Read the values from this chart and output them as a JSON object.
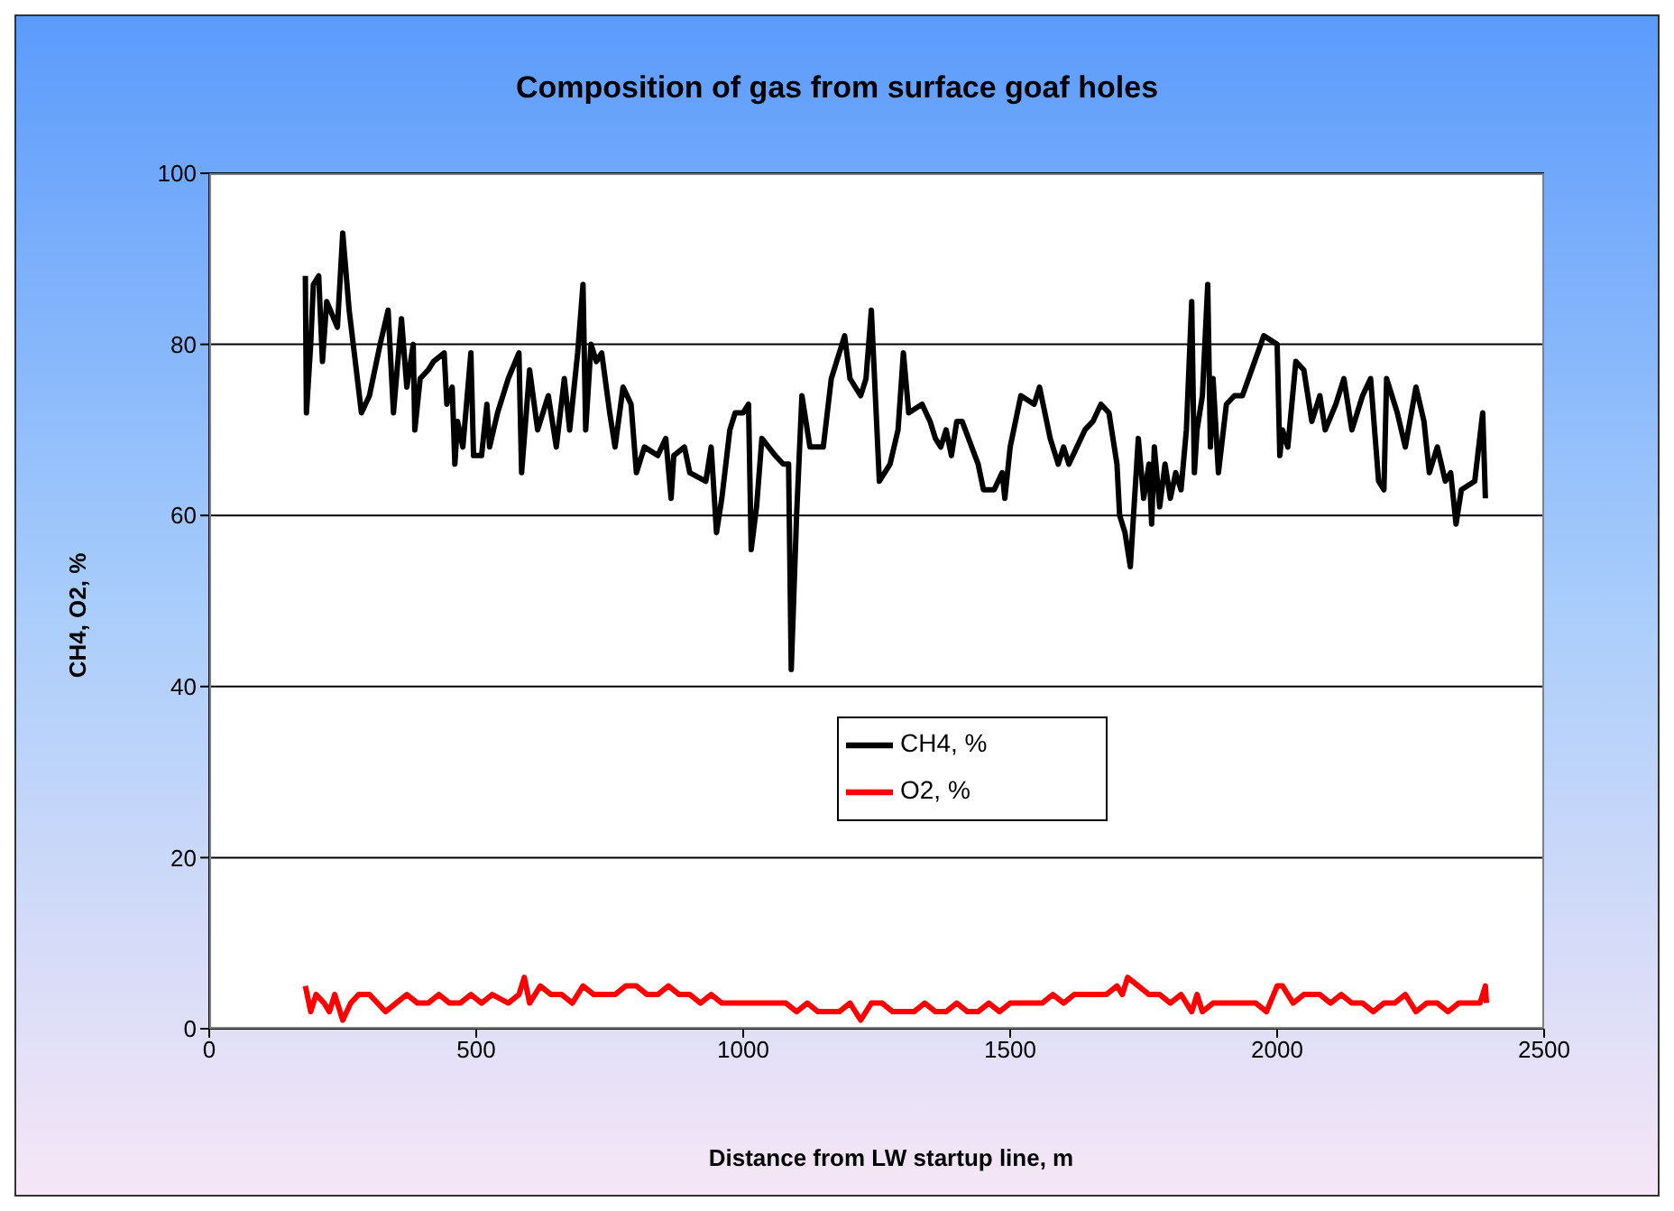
{
  "chart_data": {
    "type": "line",
    "title": "Composition of gas from surface goaf holes",
    "xlabel": "Distance from LW startup line, m",
    "ylabel": "CH4, O2, %",
    "xlim": [
      0,
      2500
    ],
    "xticks": [
      0,
      500,
      1000,
      1500,
      2000,
      2500
    ],
    "ylim": [
      0,
      100
    ],
    "yticks": [
      0,
      20,
      40,
      60,
      80,
      100
    ],
    "grid": "y",
    "legend": "bottom",
    "marker": "none",
    "line_style": "solid",
    "series": [
      {
        "name": "CH4, %",
        "color": "#000000",
        "x": [
          180,
          182,
          190,
          195,
          205,
          212,
          220,
          240,
          250,
          262,
          285,
          300,
          320,
          335,
          345,
          360,
          370,
          382,
          385,
          395,
          410,
          420,
          440,
          445,
          455,
          460,
          465,
          475,
          490,
          495,
          510,
          520,
          525,
          540,
          560,
          580,
          585,
          600,
          615,
          625,
          635,
          650,
          665,
          675,
          690,
          700,
          705,
          715,
          725,
          735,
          750,
          760,
          775,
          790,
          800,
          815,
          840,
          855,
          865,
          870,
          890,
          900,
          930,
          940,
          950,
          960,
          975,
          985,
          1000,
          1010,
          1015,
          1025,
          1035,
          1060,
          1075,
          1085,
          1090,
          1100,
          1110,
          1125,
          1150,
          1165,
          1190,
          1200,
          1220,
          1230,
          1240,
          1255,
          1275,
          1290,
          1300,
          1310,
          1335,
          1350,
          1360,
          1370,
          1380,
          1390,
          1400,
          1410,
          1440,
          1450,
          1470,
          1485,
          1490,
          1500,
          1520,
          1545,
          1555,
          1575,
          1590,
          1600,
          1610,
          1625,
          1640,
          1655,
          1670,
          1685,
          1700,
          1705,
          1715,
          1725,
          1740,
          1750,
          1760,
          1765,
          1770,
          1780,
          1790,
          1800,
          1810,
          1820,
          1830,
          1840,
          1845,
          1850,
          1860,
          1870,
          1875,
          1880,
          1890,
          1905,
          1920,
          1935,
          1975,
          2000,
          2005,
          2010,
          2020,
          2035,
          2050,
          2065,
          2080,
          2090,
          2110,
          2125,
          2140,
          2160,
          2175,
          2190,
          2200,
          2205,
          2225,
          2240,
          2260,
          2275,
          2285,
          2300,
          2315,
          2325,
          2335,
          2345,
          2370,
          2385,
          2390
        ],
        "values": [
          88,
          72,
          80,
          87,
          88,
          78,
          85,
          82,
          93,
          84,
          72,
          74,
          80,
          84,
          72,
          83,
          75,
          80,
          70,
          76,
          77,
          78,
          79,
          73,
          75,
          66,
          71,
          68,
          79,
          67,
          67,
          73,
          68,
          72,
          76,
          79,
          65,
          77,
          70,
          72,
          74,
          68,
          76,
          70,
          79,
          87,
          70,
          80,
          78,
          79,
          72,
          68,
          75,
          73,
          65,
          68,
          67,
          69,
          62,
          67,
          68,
          65,
          64,
          68,
          58,
          62,
          70,
          72,
          72,
          73,
          56,
          61,
          69,
          67,
          66,
          66,
          42,
          60,
          74,
          68,
          68,
          76,
          81,
          76,
          74,
          76,
          84,
          64,
          66,
          70,
          79,
          72,
          73,
          71,
          69,
          68,
          70,
          67,
          71,
          71,
          66,
          63,
          63,
          65,
          62,
          68,
          74,
          73,
          75,
          69,
          66,
          68,
          66,
          68,
          70,
          71,
          73,
          72,
          66,
          60,
          58,
          54,
          69,
          62,
          66,
          59,
          68,
          61,
          66,
          62,
          65,
          63,
          70,
          85,
          65,
          70,
          74,
          87,
          68,
          76,
          65,
          73,
          74,
          74,
          81,
          80,
          67,
          70,
          68,
          78,
          77,
          71,
          74,
          70,
          73,
          76,
          70,
          74,
          76,
          64,
          63,
          76,
          72,
          68,
          75,
          71,
          65,
          68,
          64,
          65,
          59,
          63,
          64,
          72,
          62
        ]
      },
      {
        "name": "O2, %",
        "color": "#ff0000",
        "x": [
          180,
          190,
          200,
          215,
          225,
          235,
          250,
          265,
          280,
          300,
          315,
          330,
          350,
          370,
          390,
          410,
          430,
          450,
          470,
          490,
          510,
          530,
          560,
          580,
          590,
          600,
          620,
          640,
          660,
          680,
          700,
          720,
          740,
          760,
          780,
          800,
          820,
          840,
          860,
          880,
          900,
          920,
          940,
          960,
          980,
          1000,
          1020,
          1040,
          1060,
          1080,
          1100,
          1120,
          1140,
          1160,
          1180,
          1200,
          1220,
          1240,
          1260,
          1280,
          1300,
          1320,
          1340,
          1360,
          1380,
          1400,
          1420,
          1440,
          1460,
          1480,
          1500,
          1520,
          1540,
          1560,
          1580,
          1600,
          1620,
          1640,
          1660,
          1680,
          1700,
          1710,
          1720,
          1740,
          1760,
          1780,
          1800,
          1820,
          1840,
          1850,
          1860,
          1880,
          1900,
          1920,
          1940,
          1960,
          1980,
          2000,
          2010,
          2030,
          2050,
          2080,
          2100,
          2120,
          2140,
          2160,
          2180,
          2200,
          2220,
          2240,
          2260,
          2280,
          2300,
          2320,
          2340,
          2360,
          2380,
          2390,
          2392
        ],
        "values": [
          5,
          2,
          4,
          3,
          2,
          4,
          1,
          3,
          4,
          4,
          3,
          2,
          3,
          4,
          3,
          3,
          4,
          3,
          3,
          4,
          3,
          4,
          3,
          4,
          6,
          3,
          5,
          4,
          4,
          3,
          5,
          4,
          4,
          4,
          5,
          5,
          4,
          4,
          5,
          4,
          4,
          3,
          4,
          3,
          3,
          3,
          3,
          3,
          3,
          3,
          2,
          3,
          2,
          2,
          2,
          3,
          1,
          3,
          3,
          2,
          2,
          2,
          3,
          2,
          2,
          3,
          2,
          2,
          3,
          2,
          3,
          3,
          3,
          3,
          4,
          3,
          4,
          4,
          4,
          4,
          5,
          4,
          6,
          5,
          4,
          4,
          3,
          4,
          2,
          4,
          2,
          3,
          3,
          3,
          3,
          3,
          2,
          5,
          5,
          3,
          4,
          4,
          3,
          4,
          3,
          3,
          2,
          3,
          3,
          4,
          2,
          3,
          3,
          2,
          3,
          3,
          3,
          5,
          3
        ]
      }
    ]
  }
}
